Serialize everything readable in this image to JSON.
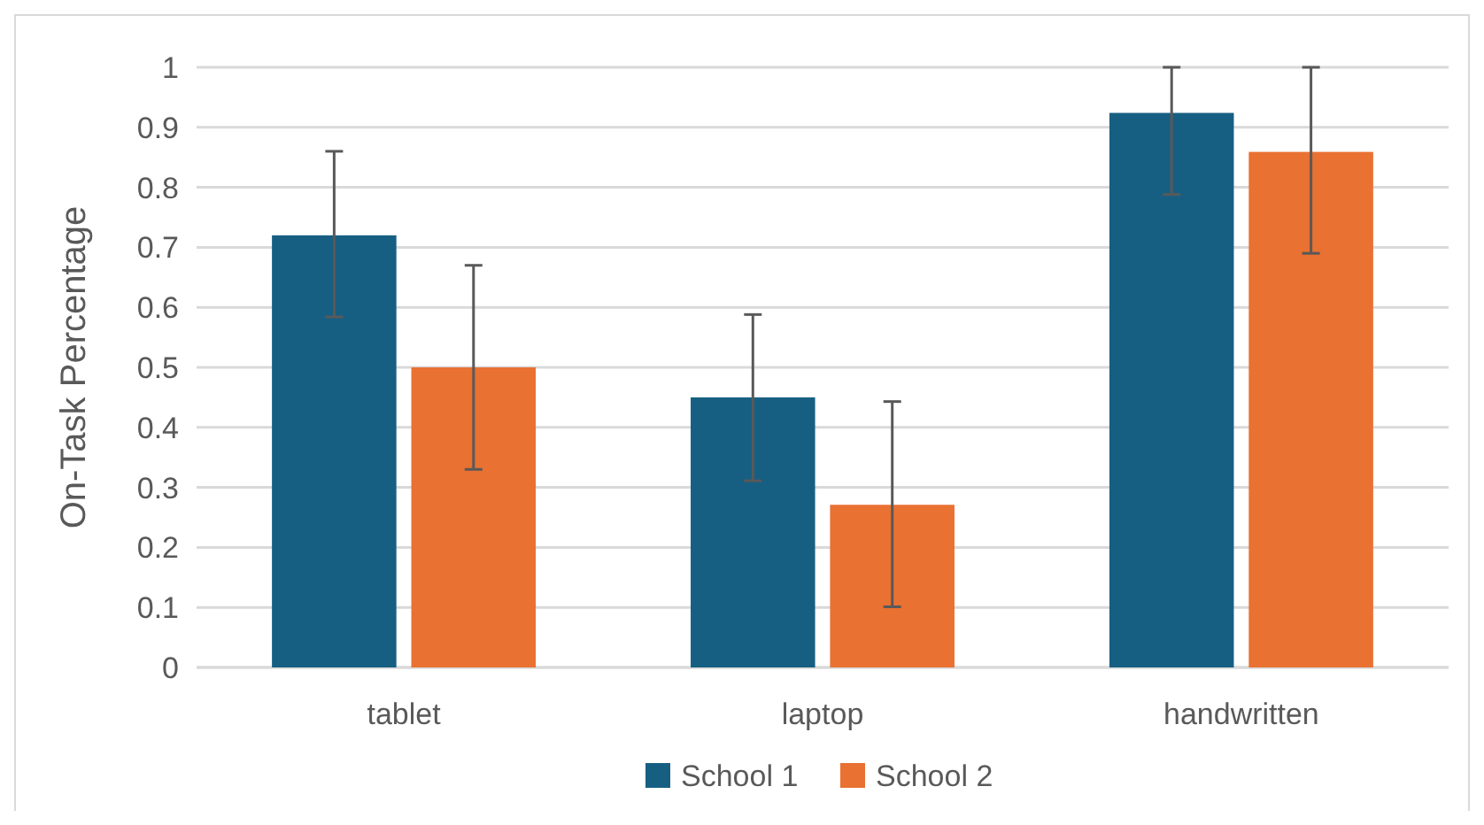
{
  "chart_data": {
    "type": "bar",
    "ylabel": "On-Task Percentage",
    "categories": [
      "tablet",
      "laptop",
      "handwritten"
    ],
    "series": [
      {
        "name": "School 1",
        "color": "#175f82",
        "values": [
          0.72,
          0.45,
          0.924
        ],
        "errors": [
          [
            0.584,
            0.86
          ],
          [
            0.311,
            0.588
          ],
          [
            0.788,
            1
          ]
        ]
      },
      {
        "name": "School 2",
        "color": "#e97132",
        "values": [
          0.5,
          0.271,
          0.859
        ],
        "errors": [
          [
            0.33,
            0.67
          ],
          [
            0.101,
            0.443
          ],
          [
            0.69,
            1
          ]
        ]
      }
    ],
    "ylim": [
      0,
      1
    ],
    "yticks": [
      0,
      0.1,
      0.2,
      0.3,
      0.4,
      0.5,
      0.6,
      0.7,
      0.8,
      0.9,
      1
    ],
    "grid": "y",
    "legend": "bottom"
  }
}
